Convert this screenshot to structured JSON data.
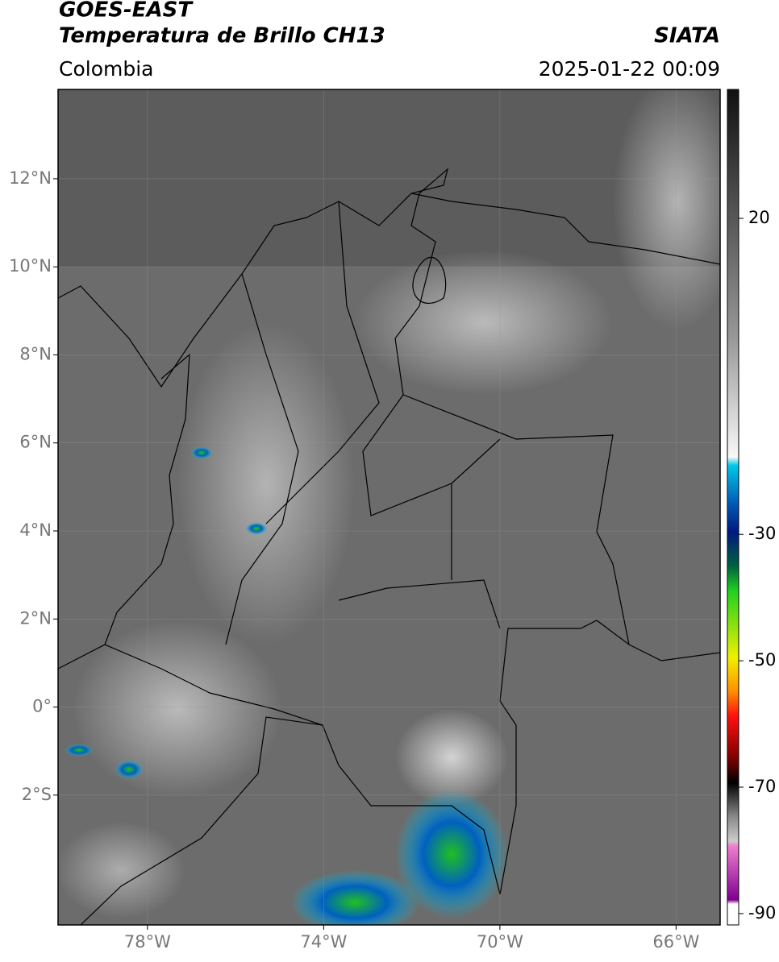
{
  "header": {
    "satellite": "GOES-EAST",
    "product": "Temperatura de Brillo CH13",
    "source": "SIATA",
    "region": "Colombia",
    "datetime": "2025-01-22 00:09"
  },
  "map": {
    "lonlim": [
      -80.03,
      -65.0
    ],
    "latlim": [
      -4.95,
      14.03
    ],
    "lat_ticks": [
      {
        "value": 12,
        "label": "12°N"
      },
      {
        "value": 10,
        "label": "10°N"
      },
      {
        "value": 8,
        "label": "8°N"
      },
      {
        "value": 6,
        "label": "6°N"
      },
      {
        "value": 4,
        "label": "4°N"
      },
      {
        "value": 2,
        "label": "2°N"
      },
      {
        "value": 0,
        "label": "0°"
      },
      {
        "value": -2,
        "label": "2°S"
      }
    ],
    "lon_ticks": [
      {
        "value": -78,
        "label": "78°W"
      },
      {
        "value": -74,
        "label": "74°W"
      },
      {
        "value": -70,
        "label": "70°W"
      },
      {
        "value": -66,
        "label": "66°W"
      }
    ]
  },
  "colorbar": {
    "clim": [
      -91.8,
      40.4
    ],
    "ticks": [
      20,
      -30,
      -50,
      -70,
      -90
    ]
  }
}
